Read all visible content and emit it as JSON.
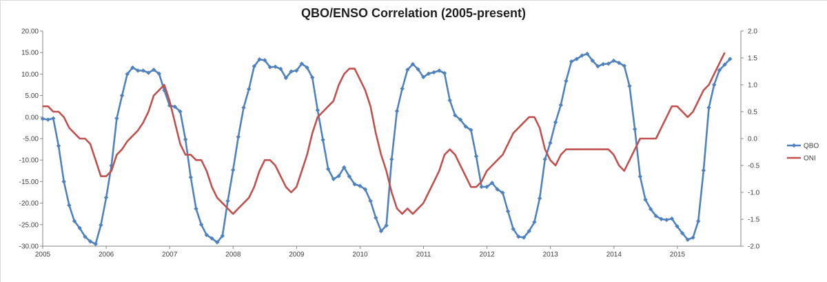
{
  "chart_data": {
    "type": "line",
    "title": "QBO/ENSO Correlation (2005-present)",
    "x_tick_labels": [
      "2005",
      "2006",
      "2007",
      "2008",
      "2009",
      "2010",
      "2011",
      "2012",
      "2013",
      "2014",
      "2015"
    ],
    "x_range": [
      2005,
      2016
    ],
    "y_left": {
      "range": [
        -30,
        20
      ],
      "tick_labels": [
        "20.00",
        "15.00",
        "10.00",
        "5.00",
        "0.00",
        "-5.00",
        "-10.00",
        "-15.00",
        "-20.00",
        "-25.00",
        "-30.00"
      ]
    },
    "y_right": {
      "range": [
        -2,
        2
      ],
      "tick_labels": [
        "2.0",
        "1.5",
        "1.0",
        "0.5",
        "0.0",
        "-0.5",
        "-1.0",
        "-1.5",
        "-2.0"
      ]
    },
    "legend_position": "right",
    "grid": false,
    "x_start": 2005.0,
    "x_step": 0.0833,
    "series": [
      {
        "name": "QBO",
        "axis": "left",
        "color": "#4f81bd",
        "marker": "diamond",
        "values": [
          -0.4,
          -0.6,
          -0.3,
          -6.7,
          -15,
          -20.5,
          -24.2,
          -25.8,
          -27.8,
          -28.9,
          -29.5,
          -25.1,
          -18.7,
          -11.3,
          -0.3,
          5,
          10,
          11.5,
          10.8,
          10.8,
          10.3,
          11,
          10.1,
          6.2,
          2.7,
          2.4,
          1.3,
          -5.2,
          -14,
          -21.3,
          -25,
          -27.4,
          -28.2,
          -29.1,
          -27.6,
          -19.5,
          -12.3,
          -4.6,
          2.2,
          6.5,
          11.8,
          13.4,
          13.2,
          11.6,
          11.7,
          11.2,
          9.1,
          10.6,
          10.8,
          12.4,
          11.5,
          9.2,
          1.6,
          -5.3,
          -12.1,
          -14.4,
          -13.7,
          -11.7,
          -13.8,
          -15.6,
          -16,
          -16.8,
          -19.5,
          -23.4,
          -26.5,
          -25.2,
          -9.8,
          1.4,
          6.6,
          11,
          12.3,
          11.1,
          9.3,
          10.1,
          10.4,
          10.8,
          10.2,
          3.9,
          0.4,
          -0.6,
          -2.2,
          -3,
          -9.1,
          -16.2,
          -16.2,
          -15.3,
          -16.8,
          -17.6,
          -21.9,
          -26,
          -27.8,
          -28,
          -26.5,
          -24.4,
          -18.9,
          -9.8,
          -6,
          -1.2,
          2.8,
          8.4,
          12.9,
          13.5,
          14.3,
          14.7,
          13.1,
          11.8,
          12.3,
          12.4,
          13.1,
          12.6,
          11.9,
          7.2,
          -2.8,
          -13.8,
          -19.2,
          -21.4,
          -23,
          -23.7,
          -23.9,
          -23.6,
          -25.4,
          -27,
          -28.5,
          -28,
          -24.2,
          -12.4,
          2.2,
          7.5,
          10.9,
          12.2,
          13.5
        ]
      },
      {
        "name": "ONI",
        "axis": "right",
        "color": "#c0504d",
        "values": [
          0.6,
          0.6,
          0.5,
          0.5,
          0.4,
          0.2,
          0.1,
          0,
          0,
          -0.1,
          -0.4,
          -0.7,
          -0.7,
          -0.6,
          -0.3,
          -0.2,
          -0.05,
          0.05,
          0.15,
          0.3,
          0.5,
          0.8,
          0.9,
          1,
          0.7,
          0.3,
          -0.1,
          -0.3,
          -0.3,
          -0.4,
          -0.4,
          -0.6,
          -0.9,
          -1.1,
          -1.2,
          -1.3,
          -1.4,
          -1.3,
          -1.2,
          -1.1,
          -0.9,
          -0.6,
          -0.4,
          -0.4,
          -0.5,
          -0.7,
          -0.9,
          -1,
          -0.9,
          -0.6,
          -0.3,
          0.1,
          0.4,
          0.5,
          0.6,
          0.7,
          1,
          1.2,
          1.3,
          1.3,
          1.1,
          0.9,
          0.6,
          0.1,
          -0.3,
          -0.6,
          -1,
          -1.3,
          -1.4,
          -1.3,
          -1.4,
          -1.3,
          -1.2,
          -1,
          -0.8,
          -0.6,
          -0.3,
          -0.2,
          -0.3,
          -0.5,
          -0.7,
          -0.9,
          -0.9,
          -0.8,
          -0.6,
          -0.5,
          -0.4,
          -0.3,
          -0.1,
          0.1,
          0.2,
          0.3,
          0.4,
          0.4,
          0.2,
          -0.2,
          -0.4,
          -0.5,
          -0.3,
          -0.2,
          -0.2,
          -0.2,
          -0.2,
          -0.2,
          -0.2,
          -0.2,
          -0.2,
          -0.2,
          -0.3,
          -0.5,
          -0.6,
          -0.4,
          -0.2,
          0,
          0,
          0,
          0,
          0.2,
          0.4,
          0.6,
          0.6,
          0.5,
          0.4,
          0.5,
          0.7,
          0.9,
          1,
          1.2,
          1.4,
          1.6
        ]
      }
    ]
  }
}
